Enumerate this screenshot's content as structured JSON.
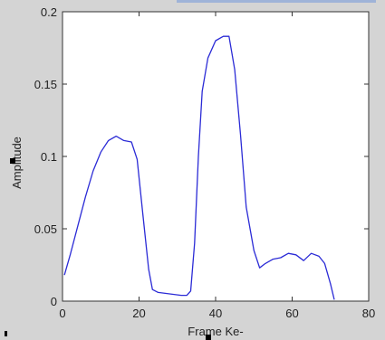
{
  "chart_data": {
    "type": "line",
    "title": "",
    "xlabel": "Frame Ke-",
    "ylabel": "Amplitude",
    "xlim": [
      0,
      80
    ],
    "ylim": [
      0,
      0.2
    ],
    "xticks": [
      0,
      20,
      40,
      60,
      80
    ],
    "xtick_labels": [
      "0",
      "20",
      "40",
      "60",
      "80"
    ],
    "yticks": [
      0,
      0.05,
      0.1,
      0.15,
      0.2
    ],
    "ytick_labels": [
      "0",
      "0.05",
      "0.1",
      "0.15",
      "0.2"
    ],
    "grid": false,
    "series": [
      {
        "color": "#2b2bd6",
        "x": [
          0.5,
          2,
          4,
          6,
          8,
          10,
          12,
          14,
          16,
          18,
          19.5,
          21,
          22.5,
          23.5,
          25,
          28,
          31,
          32.5,
          33.5,
          34.5,
          35.5,
          36.5,
          38,
          40,
          42,
          43.5,
          45,
          46.5,
          48,
          50,
          51.5,
          53,
          55,
          57,
          59,
          61,
          63,
          65,
          67,
          68.5,
          70,
          71
        ],
        "y": [
          0.018,
          0.032,
          0.052,
          0.072,
          0.09,
          0.103,
          0.111,
          0.114,
          0.111,
          0.11,
          0.098,
          0.06,
          0.022,
          0.008,
          0.006,
          0.005,
          0.004,
          0.004,
          0.007,
          0.04,
          0.1,
          0.145,
          0.168,
          0.18,
          0.183,
          0.183,
          0.16,
          0.115,
          0.065,
          0.035,
          0.023,
          0.026,
          0.029,
          0.03,
          0.033,
          0.032,
          0.028,
          0.033,
          0.031,
          0.026,
          0.012,
          0.001
        ]
      }
    ]
  }
}
